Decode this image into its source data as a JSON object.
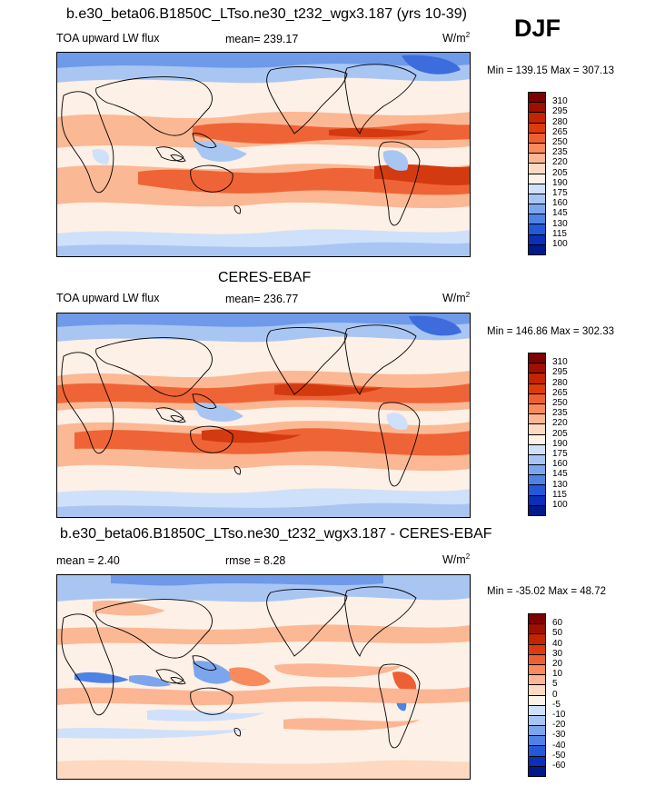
{
  "season": "DJF",
  "panels": [
    {
      "title": "b.e30_beta06.B1850C_LTso.ne30_t232_wgx3.187 (yrs 10-39)",
      "left_label": "TOA upward LW flux",
      "center_label": "mean= 239.17",
      "units_base": "W/m",
      "units_sup": "2",
      "minmax": "Min = 139.15 Max = 307.13",
      "colorbar_labels": [
        "310",
        "295",
        "280",
        "265",
        "250",
        "235",
        "220",
        "205",
        "190",
        "175",
        "160",
        "145",
        "130",
        "115",
        "100"
      ],
      "colorbar_colors": [
        "#7f0000",
        "#a00f00",
        "#c52400",
        "#de3b0c",
        "#ee6033",
        "#f88a5c",
        "#fcb693",
        "#fdd9c1",
        "#fdf1e8",
        "#cfe0fa",
        "#a6c5f5",
        "#7ba6ee",
        "#4e82e6",
        "#2358d8",
        "#0b2fb8",
        "#001a8c"
      ]
    },
    {
      "title": "CERES-EBAF",
      "left_label": "TOA upward LW flux",
      "center_label": "mean= 236.77",
      "units_base": "W/m",
      "units_sup": "2",
      "minmax": "Min = 146.86 Max = 302.33",
      "colorbar_labels": [
        "310",
        "295",
        "280",
        "265",
        "250",
        "235",
        "220",
        "205",
        "190",
        "175",
        "160",
        "145",
        "130",
        "115",
        "100"
      ],
      "colorbar_colors": [
        "#7f0000",
        "#a00f00",
        "#c52400",
        "#de3b0c",
        "#ee6033",
        "#f88a5c",
        "#fcb693",
        "#fdd9c1",
        "#fdf1e8",
        "#cfe0fa",
        "#a6c5f5",
        "#7ba6ee",
        "#4e82e6",
        "#2358d8",
        "#0b2fb8",
        "#001a8c"
      ]
    },
    {
      "title": "b.e30_beta06.B1850C_LTso.ne30_t232_wgx3.187 - CERES-EBAF",
      "left_label": "mean =   2.40",
      "center_label": "rmse =   8.28",
      "units_base": "W/m",
      "units_sup": "2",
      "minmax": "Min = -35.02 Max =  48.72",
      "colorbar_labels": [
        "60",
        "50",
        "40",
        "30",
        "20",
        "10",
        "5",
        "0",
        "-5",
        "-10",
        "-20",
        "-30",
        "-40",
        "-50",
        "-60"
      ],
      "colorbar_colors": [
        "#7f0000",
        "#a00f00",
        "#c52400",
        "#de3b0c",
        "#ee6033",
        "#f88a5c",
        "#fcb693",
        "#fdd9c1",
        "#fdf1e8",
        "#cfe0fa",
        "#a6c5f5",
        "#7ba6ee",
        "#4e82e6",
        "#2358d8",
        "#0b2fb8",
        "#001a8c"
      ]
    }
  ]
}
